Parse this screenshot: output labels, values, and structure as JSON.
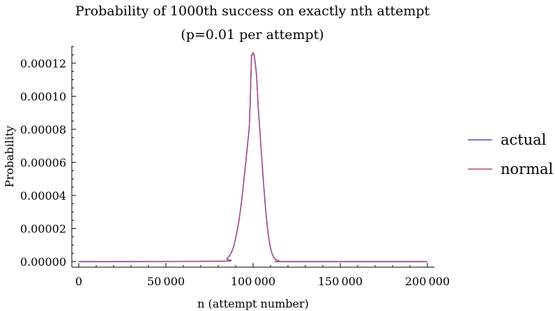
{
  "chart_data": {
    "type": "line",
    "title": "Probability of 1000th success on exactly nth attempt",
    "subtitle": "(p=0.01 per attempt)",
    "xlabel": "n (attempt number)",
    "ylabel": "Probability",
    "xlim": [
      0,
      200000
    ],
    "ylim": [
      0,
      0.00013
    ],
    "x_ticks": [
      {
        "value": 0,
        "label": "0"
      },
      {
        "value": 50000,
        "label": "50 000"
      },
      {
        "value": 100000,
        "label": "100 000"
      },
      {
        "value": 150000,
        "label": "150 000"
      },
      {
        "value": 200000,
        "label": "200 000"
      }
    ],
    "y_ticks": [
      {
        "value": 0,
        "label": "0.00000"
      },
      {
        "value": 2e-05,
        "label": "0.00002"
      },
      {
        "value": 4e-05,
        "label": "0.00004"
      },
      {
        "value": 6e-05,
        "label": "0.00006"
      },
      {
        "value": 8e-05,
        "label": "0.00008"
      },
      {
        "value": 0.0001,
        "label": "0.00010"
      },
      {
        "value": 0.00012,
        "label": "0.00012"
      }
    ],
    "legend_position": "right",
    "series": [
      {
        "name": "actual",
        "color": "#4a4ac0",
        "x": [
          0,
          80000,
          85000,
          88000,
          90000,
          92000,
          94000,
          96000,
          97000,
          98000,
          99000,
          99500,
          100000,
          100500,
          101000,
          102000,
          103000,
          104000,
          106000,
          108000,
          110000,
          112000,
          115000,
          120000,
          200000
        ],
        "y": [
          0,
          2e-07,
          1.8e-06,
          6.6e-06,
          1.42e-05,
          2.56e-05,
          4.22e-05,
          6.23e-05,
          7.27e-05,
          8.55e-05,
          0.000121,
          0.000125,
          0.0001262,
          0.000125,
          0.0001218,
          0.000112,
          9.24e-05,
          7.73e-05,
          4.73e-05,
          2.29e-05,
          8.3e-06,
          2.4e-06,
          3e-07,
          0.0,
          0
        ]
      },
      {
        "name": "normal",
        "color": "#b04a7a",
        "x": [
          0,
          80000,
          85000,
          88000,
          90000,
          92000,
          94000,
          96000,
          97000,
          98000,
          99000,
          99500,
          100000,
          100500,
          101000,
          102000,
          103000,
          104000,
          106000,
          108000,
          110000,
          112000,
          115000,
          120000,
          200000
        ],
        "y": [
          0,
          2e-07,
          1.8e-06,
          6.6e-06,
          1.42e-05,
          2.56e-05,
          4.22e-05,
          6.23e-05,
          7.27e-05,
          8.55e-05,
          0.000121,
          0.000125,
          0.0001262,
          0.000125,
          0.0001218,
          0.000112,
          9.24e-05,
          7.73e-05,
          4.73e-05,
          2.29e-05,
          8.3e-06,
          2.4e-06,
          3e-07,
          0.0,
          0
        ]
      }
    ]
  }
}
